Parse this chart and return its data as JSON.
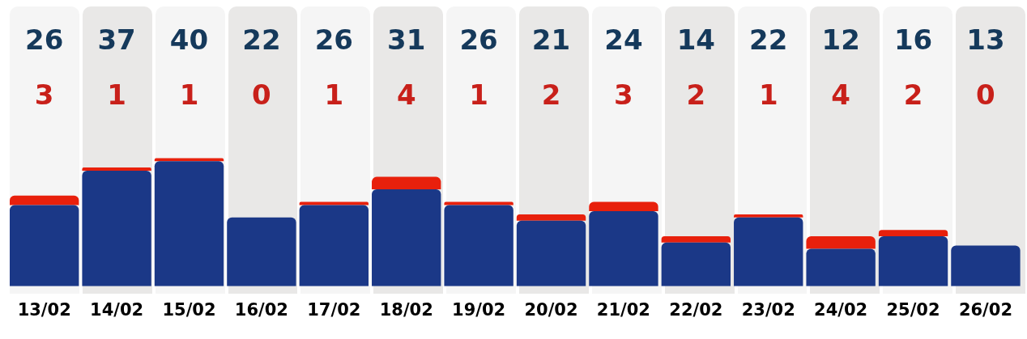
{
  "chart_data": {
    "type": "bar",
    "stacked": true,
    "data_labels": true,
    "legend": false,
    "grid": false,
    "categories": [
      "13/02",
      "14/02",
      "15/02",
      "16/02",
      "17/02",
      "18/02",
      "19/02",
      "20/02",
      "21/02",
      "22/02",
      "23/02",
      "24/02",
      "25/02",
      "26/02"
    ],
    "series": [
      {
        "color": "#1b3887",
        "values": [
          26,
          37,
          40,
          22,
          26,
          31,
          26,
          21,
          24,
          14,
          22,
          12,
          16,
          13
        ]
      },
      {
        "color": "#e8200c",
        "values": [
          3,
          1,
          1,
          0,
          1,
          4,
          1,
          2,
          3,
          2,
          1,
          4,
          2,
          0
        ]
      }
    ]
  }
}
